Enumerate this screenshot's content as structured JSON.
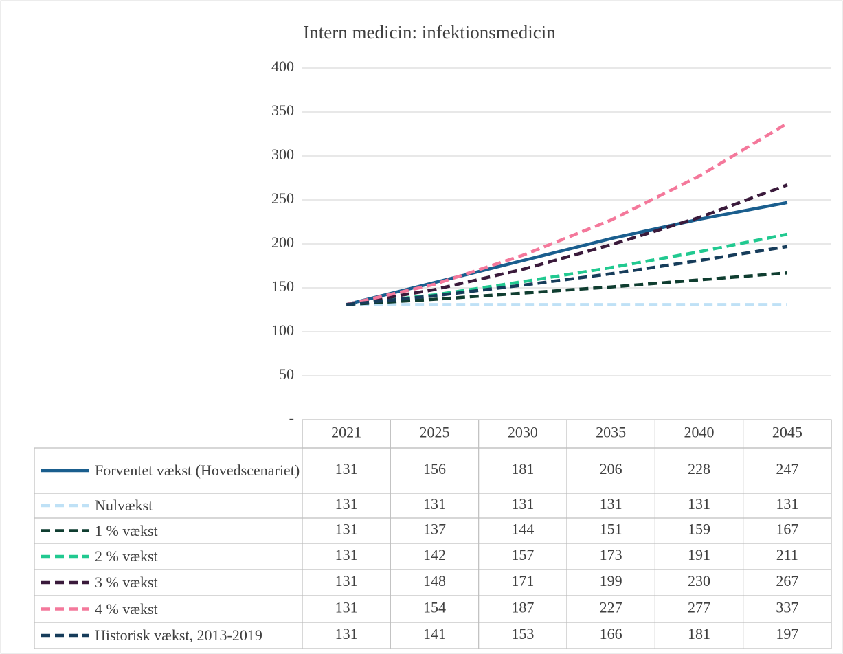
{
  "chart_data": {
    "type": "line",
    "title": "Intern medicin: infektionsmedicin",
    "categories": [
      "2021",
      "2025",
      "2030",
      "2035",
      "2040",
      "2045"
    ],
    "ylim": [
      0,
      400
    ],
    "yticks": [
      {
        "value": 0,
        "label": "-"
      },
      50,
      100,
      150,
      200,
      250,
      300,
      350,
      400
    ],
    "grid": true,
    "series": [
      {
        "name": "Forventet vækst (Hovedscenariet)",
        "color": "#1a5e8e",
        "dashed": false,
        "values": [
          131,
          156,
          181,
          206,
          228,
          247
        ]
      },
      {
        "name": "Nulvækst",
        "color": "#bfe1f6",
        "dashed": true,
        "values": [
          131,
          131,
          131,
          131,
          131,
          131
        ]
      },
      {
        "name": "1 % vækst",
        "color": "#0f3d30",
        "dashed": true,
        "values": [
          131,
          137,
          144,
          151,
          159,
          167
        ]
      },
      {
        "name": "2 % vækst",
        "color": "#21c990",
        "dashed": true,
        "values": [
          131,
          142,
          157,
          173,
          191,
          211
        ]
      },
      {
        "name": "3 % vækst",
        "color": "#3a1a3b",
        "dashed": true,
        "values": [
          131,
          148,
          171,
          199,
          230,
          267
        ]
      },
      {
        "name": "4 % vækst",
        "color": "#f4789b",
        "dashed": true,
        "values": [
          131,
          154,
          187,
          227,
          277,
          337
        ]
      },
      {
        "name": "Historisk vækst, 2013-2019",
        "color": "#163c5a",
        "dashed": true,
        "values": [
          131,
          141,
          153,
          166,
          181,
          197
        ]
      }
    ]
  }
}
